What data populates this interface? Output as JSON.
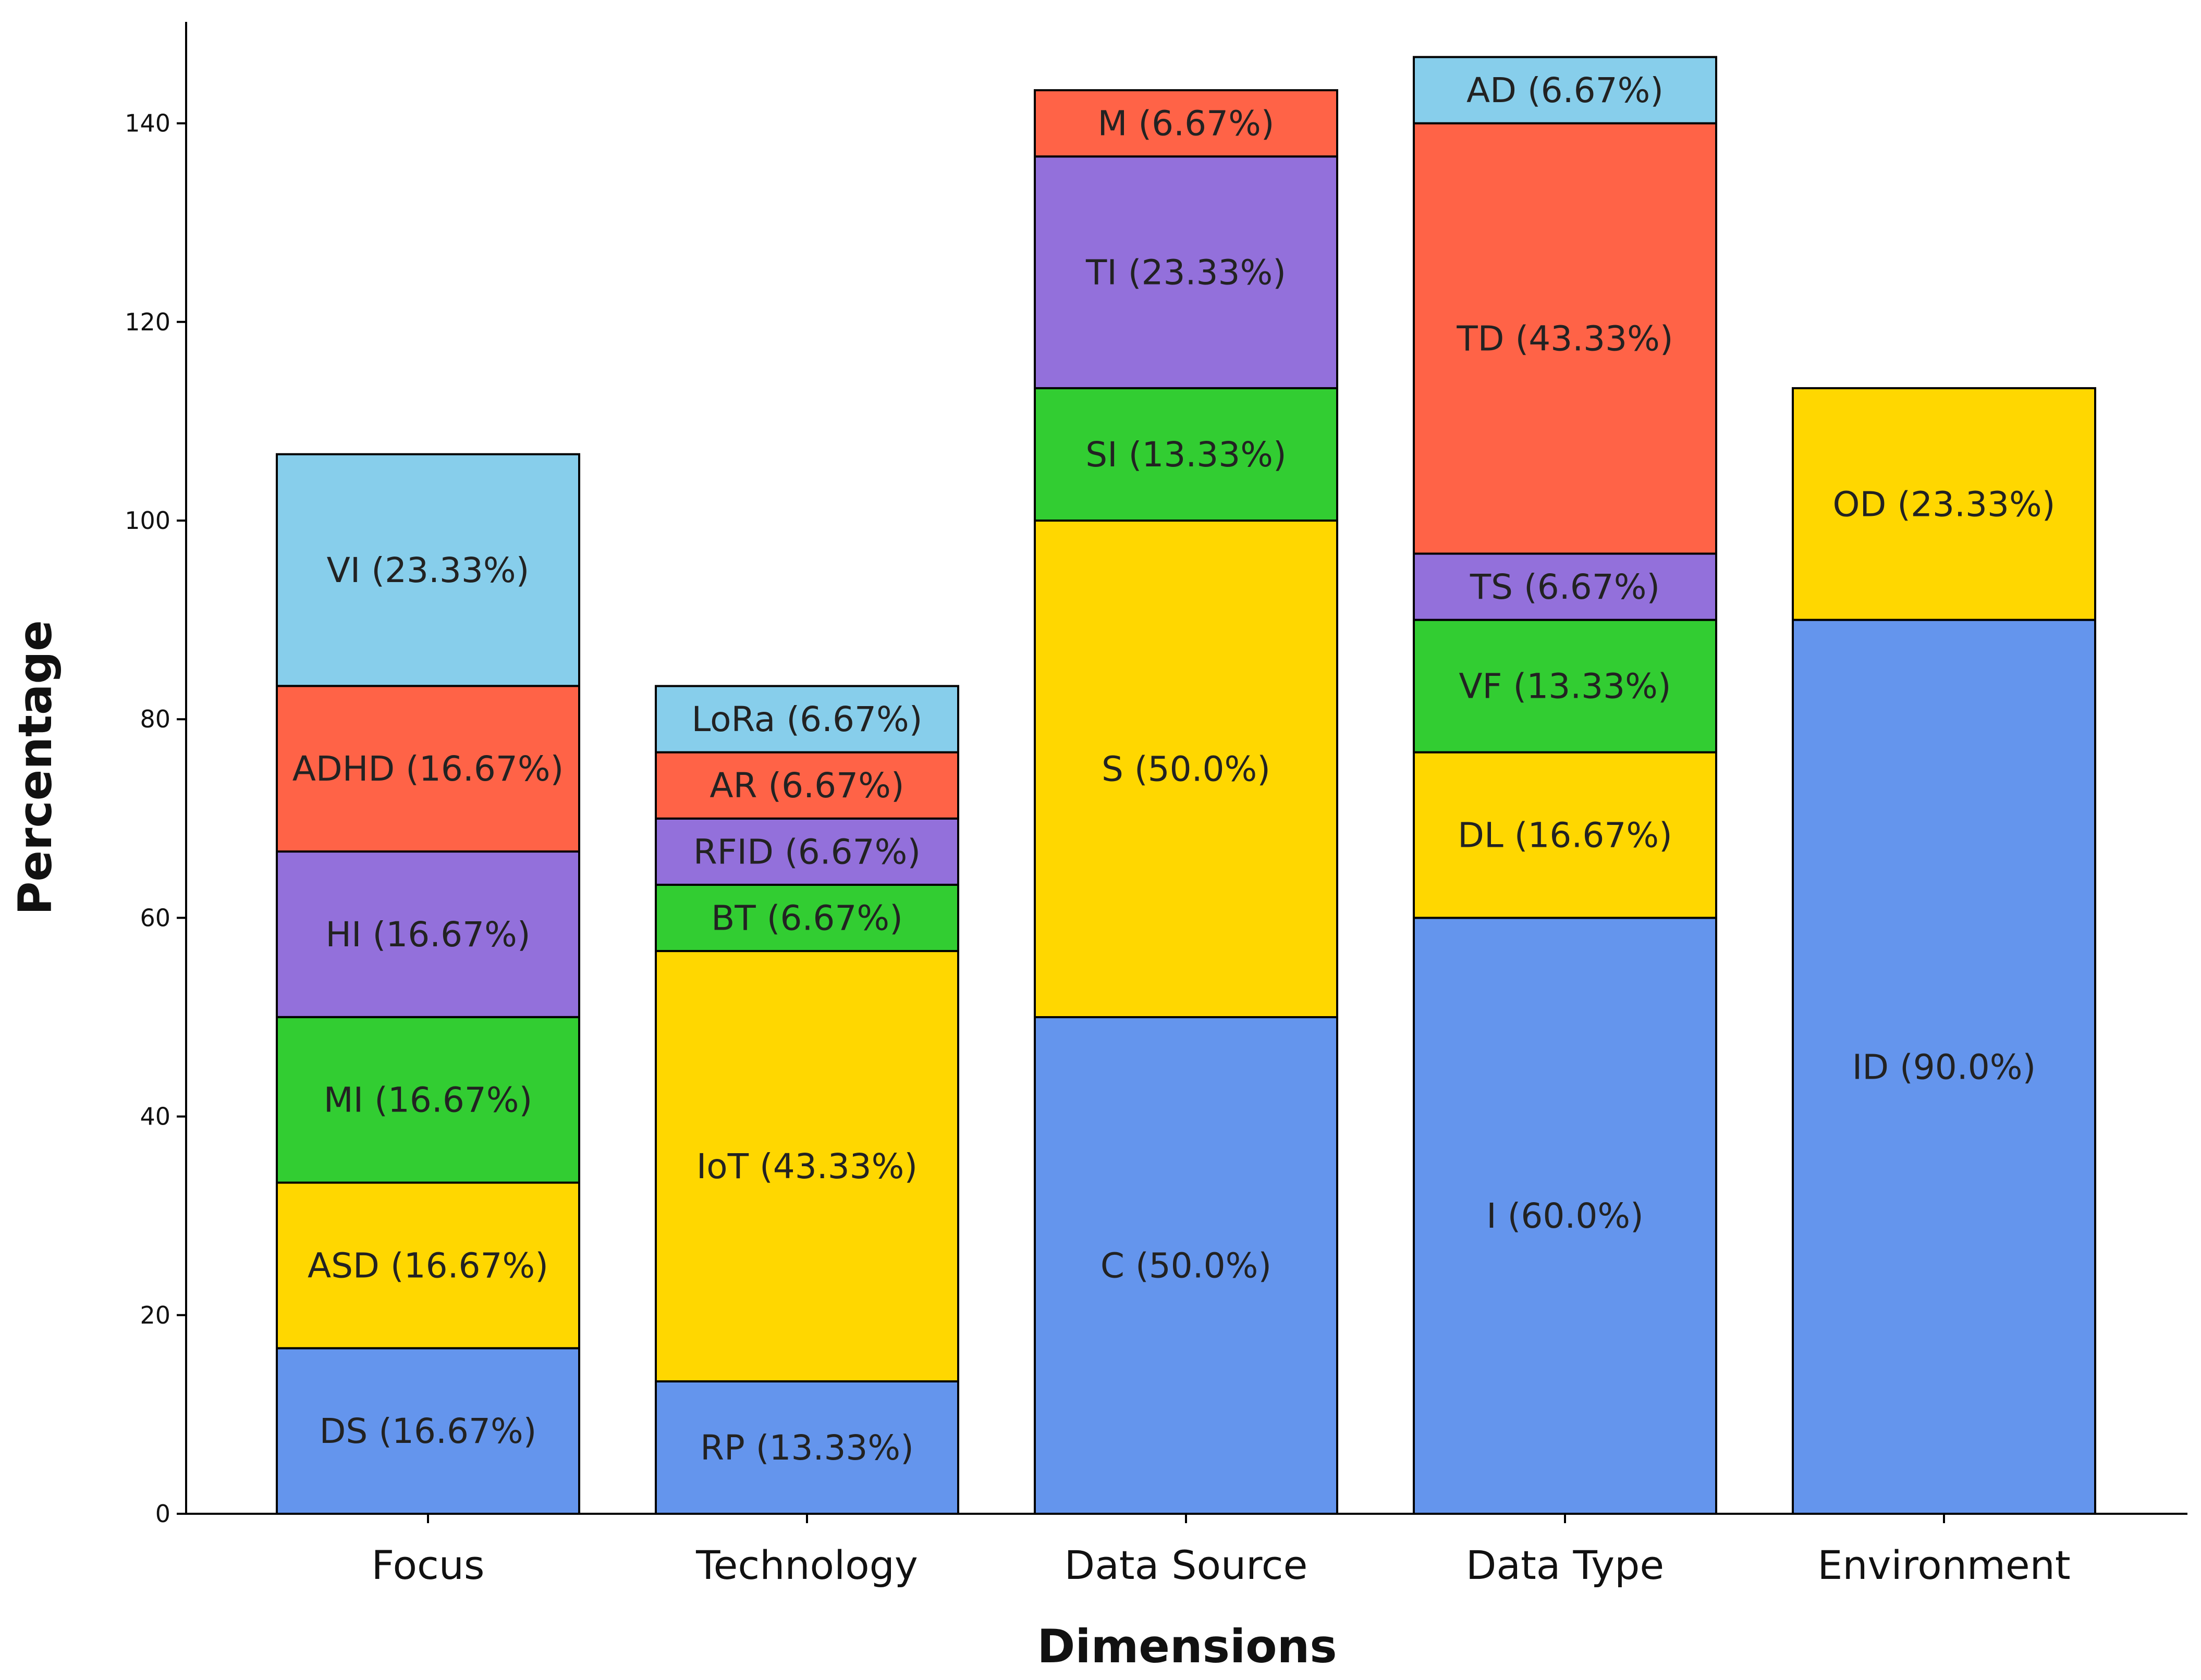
{
  "chart_data": {
    "type": "bar",
    "stacked": true,
    "title": "",
    "xlabel": "Dimensions",
    "ylabel": "Percentage",
    "ylim": [
      0,
      150
    ],
    "yticks": [
      0,
      20,
      40,
      60,
      80,
      100,
      120,
      140
    ],
    "grid": false,
    "legend": "none",
    "categories": [
      "Focus",
      "Technology",
      "Data Source",
      "Data Type",
      "Environment"
    ],
    "segment_colors": [
      "#6495ED",
      "#FFD700",
      "#32CD32",
      "#9370DB",
      "#FF6347",
      "#87CEEB"
    ],
    "stacks": [
      {
        "category": "Focus",
        "segments": [
          {
            "label": "DS (16.67%)",
            "value": 16.67
          },
          {
            "label": "ASD (16.67%)",
            "value": 16.67
          },
          {
            "label": "MI (16.67%)",
            "value": 16.67
          },
          {
            "label": "HI (16.67%)",
            "value": 16.67
          },
          {
            "label": "ADHD (16.67%)",
            "value": 16.67
          },
          {
            "label": "VI (23.33%)",
            "value": 23.33
          }
        ]
      },
      {
        "category": "Technology",
        "segments": [
          {
            "label": "RP (13.33%)",
            "value": 13.33
          },
          {
            "label": "IoT (43.33%)",
            "value": 43.33
          },
          {
            "label": "BT (6.67%)",
            "value": 6.67
          },
          {
            "label": "RFID (6.67%)",
            "value": 6.67
          },
          {
            "label": "AR (6.67%)",
            "value": 6.67
          },
          {
            "label": "LoRa (6.67%)",
            "value": 6.67
          }
        ]
      },
      {
        "category": "Data Source",
        "segments": [
          {
            "label": "C (50.0%)",
            "value": 50.0
          },
          {
            "label": "S (50.0%)",
            "value": 50.0
          },
          {
            "label": "SI (13.33%)",
            "value": 13.33
          },
          {
            "label": "TI (23.33%)",
            "value": 23.33
          },
          {
            "label": "M (6.67%)",
            "value": 6.67
          }
        ]
      },
      {
        "category": "Data Type",
        "segments": [
          {
            "label": "I (60.0%)",
            "value": 60.0
          },
          {
            "label": "DL (16.67%)",
            "value": 16.67
          },
          {
            "label": "VF (13.33%)",
            "value": 13.33
          },
          {
            "label": "TS (6.67%)",
            "value": 6.67
          },
          {
            "label": "TD (43.33%)",
            "value": 43.33
          },
          {
            "label": "AD (6.67%)",
            "value": 6.67
          }
        ]
      },
      {
        "category": "Environment",
        "segments": [
          {
            "label": "ID (90.0%)",
            "value": 90.0
          },
          {
            "label": "OD (23.33%)",
            "value": 23.33
          }
        ]
      }
    ]
  }
}
